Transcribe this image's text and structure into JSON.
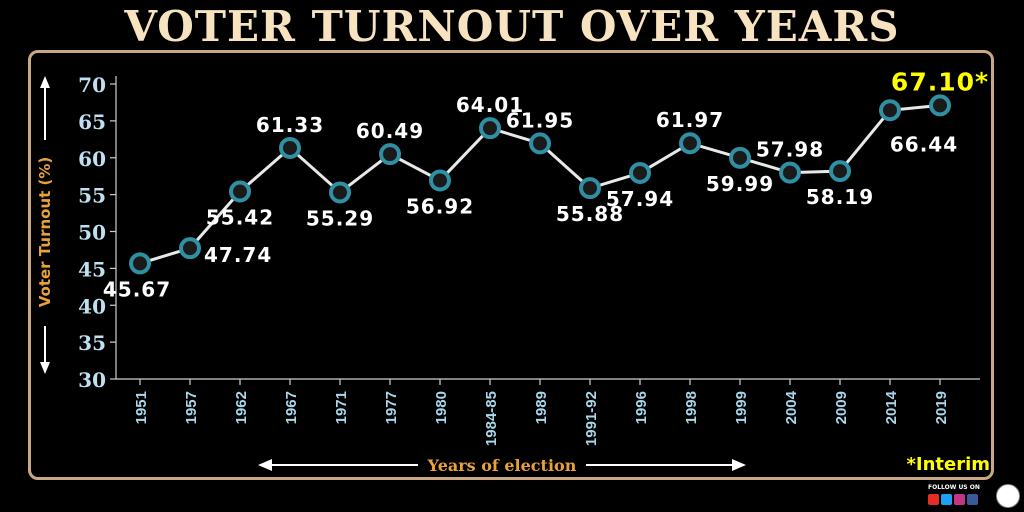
{
  "title": "VOTER TURNOUT OVER YEARS",
  "footer": {
    "follow_text": "FOLLOW US ON",
    "social_icons": [
      "youtube-icon",
      "twitter-icon",
      "instagram-icon",
      "facebook-icon"
    ],
    "social_colors": [
      "#e52d27",
      "#1da1f2",
      "#c13584",
      "#3b5998"
    ]
  },
  "chart_data": {
    "type": "line",
    "title": "VOTER TURNOUT OVER YEARS",
    "xlabel": "Years of election",
    "ylabel": "Voter Turnout (%)",
    "categories": [
      "1951",
      "1957",
      "1962",
      "1967",
      "1971",
      "1977",
      "1980",
      "1984-85",
      "1989",
      "1991-92",
      "1996",
      "1998",
      "1999",
      "2004",
      "2009",
      "2014",
      "2019"
    ],
    "values": [
      45.67,
      47.74,
      55.42,
      61.33,
      55.29,
      60.49,
      56.92,
      64.01,
      61.95,
      55.88,
      57.94,
      61.97,
      59.99,
      57.98,
      58.19,
      66.44,
      67.1
    ],
    "value_labels": [
      "45.67",
      "47.74",
      "55.42",
      "61.33",
      "55.29",
      "60.49",
      "56.92",
      "64.01",
      "61.95",
      "55.88",
      "57.94",
      "61.97",
      "59.99",
      "57.98",
      "58.19",
      "66.44",
      "67.10*"
    ],
    "ylim": [
      30,
      70
    ],
    "yticks": [
      30,
      35,
      40,
      45,
      50,
      55,
      60,
      65,
      70
    ],
    "ytick_labels": [
      "30",
      "35",
      "40",
      "45",
      "50",
      "55",
      "60",
      "65",
      "70"
    ],
    "grid": false,
    "annotation": "*Interim",
    "colors": {
      "line": "#e8e8e8",
      "marker_fill": "#1a1a1a",
      "marker_ring": "#2f8fa3",
      "highlight": "#ffff00",
      "ylabel": "#e9a23a",
      "ytick": "#bfe0f0",
      "xtick": "#a9d7ea",
      "value_label": "#ffffff"
    }
  }
}
